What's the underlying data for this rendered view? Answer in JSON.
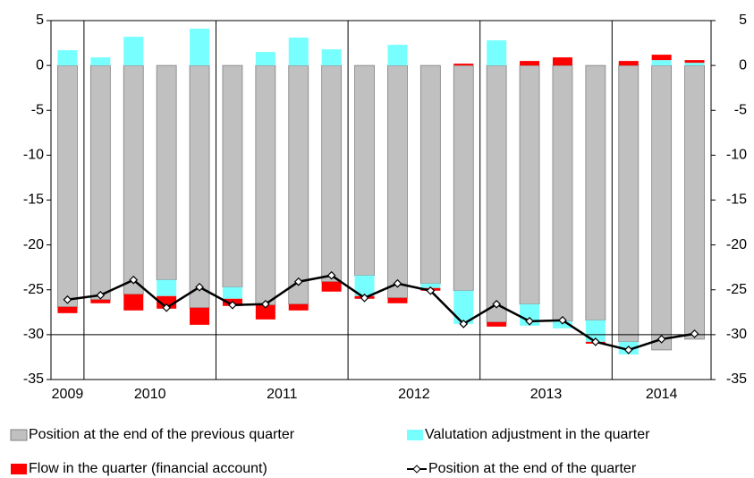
{
  "chart_data": {
    "type": "stacked-bar-line",
    "categories": [
      null,
      null,
      null,
      null,
      null,
      null,
      null,
      null,
      null,
      null,
      null,
      null,
      null,
      null,
      null,
      null,
      null,
      null,
      null,
      null
    ],
    "year_groups": [
      {
        "label": "2009",
        "count": 1
      },
      {
        "label": "2010",
        "count": 4
      },
      {
        "label": "2011",
        "count": 4
      },
      {
        "label": "2012",
        "count": 4
      },
      {
        "label": "2013",
        "count": 4
      },
      {
        "label": "2014",
        "count": 3
      }
    ],
    "series": [
      {
        "name": "Position at the end of the previous quarter",
        "color": "#c0c0c0",
        "kind": "bar",
        "values": [
          -26.9,
          -26.1,
          -25.5,
          -23.9,
          -27.0,
          -24.7,
          -26.7,
          -26.6,
          -24.1,
          -23.4,
          -25.9,
          -24.3,
          -25.1,
          -28.6,
          -26.6,
          -28.5,
          -28.4,
          -30.8,
          -31.7,
          -30.5
        ]
      },
      {
        "name": "Valutation adjustment in the quarter",
        "color": "#77ffff",
        "kind": "bar",
        "values": [
          1.7,
          0.9,
          3.2,
          -1.8,
          4.1,
          -1.3,
          1.5,
          3.1,
          1.8,
          -2.3,
          2.3,
          -0.5,
          -3.7,
          2.8,
          -2.4,
          -0.8,
          -2.4,
          -1.4,
          0.6,
          0.3
        ]
      },
      {
        "name": "Flow in the quarter (financial account)",
        "color": "#ff0000",
        "kind": "bar",
        "values": [
          -0.7,
          -0.4,
          -1.8,
          -1.4,
          -1.9,
          -0.8,
          -1.6,
          -0.7,
          -1.1,
          -0.3,
          -0.6,
          -0.3,
          0.2,
          -0.5,
          0.5,
          0.9,
          -0.2,
          0.5,
          0.6,
          0.3
        ]
      },
      {
        "name": "Position at the end of the quarter",
        "color": "#000000",
        "kind": "line",
        "values": [
          -26.1,
          -25.6,
          -23.9,
          -27.0,
          -24.7,
          -26.7,
          -26.6,
          -24.1,
          -23.4,
          -25.9,
          -24.3,
          -25.1,
          -28.8,
          -26.6,
          -28.5,
          -28.4,
          -30.8,
          -31.7,
          -30.5,
          -29.9
        ]
      }
    ],
    "ylim": [
      -35,
      5
    ],
    "yticks": [
      5,
      0,
      -5,
      -10,
      -15,
      -20,
      -25,
      -30,
      -35
    ],
    "y2lim": [
      -35,
      5
    ],
    "y2ticks": [
      5,
      0,
      -5,
      -10,
      -15,
      -20,
      -25,
      -30,
      -35
    ],
    "reference_line": -30
  }
}
